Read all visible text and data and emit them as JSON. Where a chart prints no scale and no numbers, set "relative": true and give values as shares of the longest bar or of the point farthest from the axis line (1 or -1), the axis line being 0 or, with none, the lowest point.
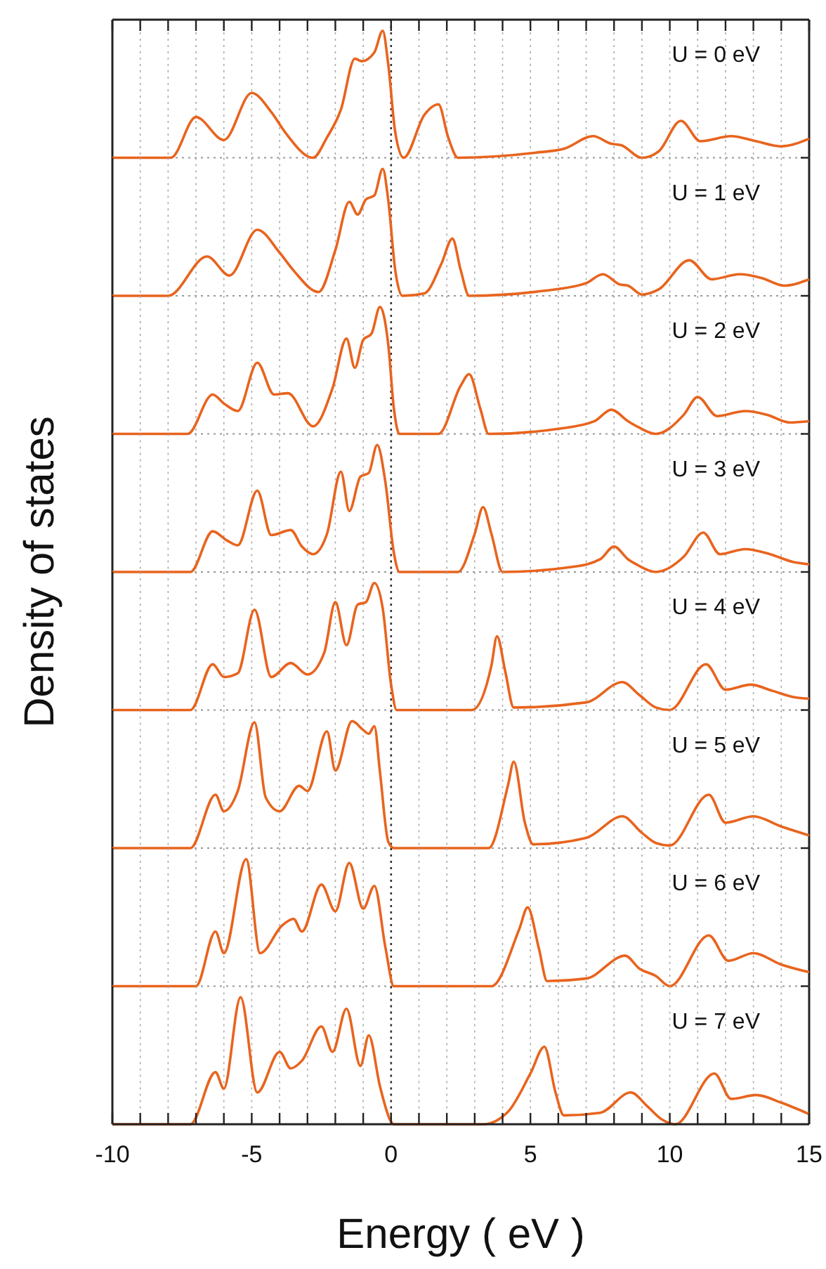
{
  "chart_data": [
    {
      "type": "line",
      "relative": true,
      "color": "#e8641e",
      "annotations": [
        "U = 0 eV"
      ],
      "xlim": [
        -10,
        15
      ],
      "grid": "x",
      "tick_labels": false,
      "ref_lines": [
        {
          "axis": "x",
          "value": 0,
          "line_style": "dotted",
          "color": "#333333"
        }
      ],
      "xticks": [
        -10,
        -9,
        -8,
        -7,
        -6,
        -5,
        -4,
        -3,
        -2,
        -1,
        0,
        1,
        2,
        3,
        4,
        5,
        6,
        7,
        8,
        9,
        10,
        11,
        12,
        13,
        14,
        15
      ],
      "x": [
        -10,
        -7.9,
        -7.0,
        -6.0,
        -5.0,
        -4.3,
        -3.8,
        -2.8,
        -2.3,
        -1.8,
        -1.3,
        -1.05,
        -0.6,
        -0.3,
        -0.1,
        0.15,
        0.45,
        1.2,
        1.7,
        2.05,
        2.4,
        5.2,
        6.2,
        7.25,
        7.9,
        8.25,
        9.0,
        9.6,
        10.4,
        11.1,
        12.2,
        13.1,
        14.0,
        15
      ],
      "values": [
        0,
        0,
        0.32,
        0.14,
        0.51,
        0.36,
        0.2,
        0,
        0.16,
        0.38,
        0.78,
        0.76,
        0.83,
        1.0,
        0.73,
        0.2,
        0,
        0.34,
        0.42,
        0.16,
        0,
        0.04,
        0.07,
        0.17,
        0.11,
        0.1,
        0,
        0.05,
        0.29,
        0.13,
        0.17,
        0.13,
        0.09,
        0.15
      ]
    },
    {
      "type": "line",
      "relative": true,
      "color": "#e8641e",
      "annotations": [
        "U = 1 eV"
      ],
      "xlim": [
        -10,
        15
      ],
      "grid": "x",
      "tick_labels": false,
      "ref_lines": [
        {
          "axis": "x",
          "value": 0,
          "line_style": "dotted",
          "color": "#333333"
        }
      ],
      "xticks": [
        -10,
        -9,
        -8,
        -7,
        -6,
        -5,
        -4,
        -3,
        -2,
        -1,
        0,
        1,
        2,
        3,
        4,
        5,
        6,
        7,
        8,
        9,
        10,
        11,
        12,
        13,
        14,
        15
      ],
      "x": [
        -10,
        -8.0,
        -6.6,
        -5.8,
        -4.8,
        -4.0,
        -3.5,
        -2.6,
        -2.0,
        -1.5,
        -1.2,
        -0.9,
        -0.6,
        -0.3,
        -0.1,
        0.15,
        0.4,
        1.2,
        1.8,
        2.2,
        2.5,
        2.8,
        5.5,
        7.0,
        7.6,
        8.2,
        8.5,
        9.0,
        9.6,
        10.7,
        11.5,
        12.5,
        13.3,
        14.1,
        15
      ],
      "values": [
        0,
        0,
        0.31,
        0.16,
        0.52,
        0.34,
        0.2,
        0.03,
        0.36,
        0.74,
        0.64,
        0.76,
        0.79,
        1.0,
        0.75,
        0.2,
        0,
        0.02,
        0.25,
        0.45,
        0.2,
        0,
        0.04,
        0.1,
        0.17,
        0.09,
        0.08,
        0.01,
        0.05,
        0.28,
        0.13,
        0.17,
        0.14,
        0.08,
        0.13
      ]
    },
    {
      "type": "line",
      "relative": true,
      "color": "#e8641e",
      "annotations": [
        "U = 2 eV"
      ],
      "xlim": [
        -10,
        15
      ],
      "grid": "x",
      "tick_labels": false,
      "ref_lines": [
        {
          "axis": "x",
          "value": 0,
          "line_style": "dotted",
          "color": "#333333"
        }
      ],
      "xticks": [
        -10,
        -9,
        -8,
        -7,
        -6,
        -5,
        -4,
        -3,
        -2,
        -1,
        0,
        1,
        2,
        3,
        4,
        5,
        6,
        7,
        8,
        9,
        10,
        11,
        12,
        13,
        14,
        15
      ],
      "x": [
        -10,
        -7.3,
        -6.4,
        -6.0,
        -5.5,
        -4.8,
        -4.2,
        -3.7,
        -2.8,
        -2.1,
        -1.6,
        -1.3,
        -1.0,
        -0.7,
        -0.4,
        -0.1,
        0.1,
        0.3,
        1.7,
        2.5,
        2.8,
        3.2,
        3.5,
        6.0,
        7.3,
        7.9,
        8.5,
        8.9,
        9.5,
        10.5,
        11.0,
        11.7,
        12.7,
        13.5,
        14.3,
        15
      ],
      "values": [
        0,
        0,
        0.31,
        0.24,
        0.18,
        0.56,
        0.31,
        0.32,
        0.06,
        0.36,
        0.75,
        0.52,
        0.74,
        0.79,
        1.0,
        0.7,
        0.2,
        0,
        0,
        0.38,
        0.47,
        0.2,
        0,
        0.04,
        0.1,
        0.19,
        0.1,
        0.05,
        0,
        0.15,
        0.29,
        0.14,
        0.18,
        0.15,
        0.09,
        0.1
      ]
    },
    {
      "type": "line",
      "relative": true,
      "color": "#e8641e",
      "annotations": [
        "U = 3 eV"
      ],
      "ylabel": "Density of states",
      "xlim": [
        -10,
        15
      ],
      "grid": "x",
      "tick_labels": false,
      "ref_lines": [
        {
          "axis": "x",
          "value": 0,
          "line_style": "dotted",
          "color": "#333333"
        }
      ],
      "xticks": [
        -10,
        -9,
        -8,
        -7,
        -6,
        -5,
        -4,
        -3,
        -2,
        -1,
        0,
        1,
        2,
        3,
        4,
        5,
        6,
        7,
        8,
        9,
        10,
        11,
        12,
        13,
        14,
        15
      ],
      "x": [
        -10,
        -7.2,
        -6.4,
        -5.9,
        -5.5,
        -4.8,
        -4.3,
        -3.6,
        -3.2,
        -2.8,
        -2.3,
        -1.8,
        -1.5,
        -1.1,
        -0.8,
        -0.5,
        -0.2,
        0.1,
        0.3,
        2.4,
        3.0,
        3.3,
        3.6,
        4.0,
        6.5,
        7.5,
        8.0,
        8.5,
        8.8,
        9.5,
        10.5,
        11.2,
        11.8,
        12.7,
        13.6,
        14.4,
        15
      ],
      "values": [
        0,
        0,
        0.32,
        0.25,
        0.21,
        0.64,
        0.29,
        0.33,
        0.2,
        0.14,
        0.3,
        0.79,
        0.48,
        0.75,
        0.78,
        1.0,
        0.7,
        0.15,
        0,
        0,
        0.3,
        0.51,
        0.3,
        0,
        0.04,
        0.1,
        0.2,
        0.1,
        0.06,
        0,
        0.12,
        0.31,
        0.14,
        0.18,
        0.14,
        0.08,
        0.06
      ]
    },
    {
      "type": "line",
      "relative": true,
      "color": "#e8641e",
      "annotations": [
        "U = 4 eV"
      ],
      "xlim": [
        -10,
        15
      ],
      "grid": "x",
      "tick_labels": false,
      "ref_lines": [
        {
          "axis": "x",
          "value": 0,
          "line_style": "dotted",
          "color": "#333333"
        }
      ],
      "xticks": [
        -10,
        -9,
        -8,
        -7,
        -6,
        -5,
        -4,
        -3,
        -2,
        -1,
        0,
        1,
        2,
        3,
        4,
        5,
        6,
        7,
        8,
        9,
        10,
        11,
        12,
        13,
        14,
        15
      ],
      "x": [
        -10,
        -7.2,
        -6.4,
        -6.0,
        -5.5,
        -4.9,
        -4.3,
        -3.6,
        -3.0,
        -2.4,
        -2.0,
        -1.6,
        -1.2,
        -0.9,
        -0.6,
        -0.3,
        0.0,
        0.2,
        2.9,
        3.6,
        3.8,
        4.1,
        4.4,
        7.0,
        8.3,
        8.9,
        9.5,
        10.0,
        11.3,
        12.0,
        12.9,
        13.7,
        14.5,
        15
      ],
      "values": [
        0,
        0,
        0.36,
        0.26,
        0.29,
        0.79,
        0.26,
        0.37,
        0.28,
        0.45,
        0.85,
        0.51,
        0.83,
        0.85,
        1.0,
        0.8,
        0.2,
        0,
        0,
        0.35,
        0.58,
        0.3,
        0.02,
        0.06,
        0.22,
        0.12,
        0.02,
        0,
        0.36,
        0.16,
        0.2,
        0.15,
        0.1,
        0.09
      ]
    },
    {
      "type": "line",
      "relative": true,
      "color": "#e8641e",
      "annotations": [
        "U = 5 eV"
      ],
      "xlim": [
        -10,
        15
      ],
      "grid": "x",
      "tick_labels": false,
      "ref_lines": [
        {
          "axis": "x",
          "value": 0,
          "line_style": "dotted",
          "color": "#333333"
        }
      ],
      "xticks": [
        -10,
        -9,
        -8,
        -7,
        -6,
        -5,
        -4,
        -3,
        -2,
        -1,
        0,
        1,
        2,
        3,
        4,
        5,
        6,
        7,
        8,
        9,
        10,
        11,
        12,
        13,
        14,
        15
      ],
      "x": [
        -10,
        -7.2,
        -6.3,
        -6.0,
        -5.5,
        -4.9,
        -4.5,
        -4.0,
        -3.3,
        -3.0,
        -2.3,
        -2.0,
        -1.4,
        -1.0,
        -0.8,
        -0.6,
        -0.4,
        -0.1,
        0.1,
        3.5,
        4.2,
        4.4,
        4.8,
        5.1,
        7.0,
        8.3,
        9.0,
        9.5,
        10.0,
        11.4,
        12.0,
        13.0,
        14.0,
        15
      ],
      "values": [
        0,
        0,
        0.42,
        0.29,
        0.45,
        0.99,
        0.4,
        0.29,
        0.49,
        0.45,
        0.92,
        0.61,
        1.0,
        0.93,
        0.9,
        0.96,
        0.6,
        0.05,
        0,
        0,
        0.5,
        0.68,
        0.2,
        0.03,
        0.08,
        0.25,
        0.12,
        0.04,
        0.02,
        0.42,
        0.2,
        0.25,
        0.17,
        0.1
      ]
    },
    {
      "type": "line",
      "relative": true,
      "color": "#e8641e",
      "annotations": [
        "U = 6 eV"
      ],
      "xlim": [
        -10,
        15
      ],
      "grid": "x",
      "tick_labels": false,
      "ref_lines": [
        {
          "axis": "x",
          "value": 0,
          "line_style": "dotted",
          "color": "#333333"
        }
      ],
      "xticks": [
        -10,
        -9,
        -8,
        -7,
        -6,
        -5,
        -4,
        -3,
        -2,
        -1,
        0,
        1,
        2,
        3,
        4,
        5,
        6,
        7,
        8,
        9,
        10,
        11,
        12,
        13,
        14,
        15
      ],
      "x": [
        -10,
        -7.0,
        -6.3,
        -6.0,
        -5.2,
        -4.7,
        -3.9,
        -3.5,
        -3.2,
        -2.5,
        -2.0,
        -1.5,
        -1.0,
        -0.6,
        -0.2,
        0.1,
        3.6,
        4.6,
        4.9,
        5.3,
        5.6,
        7.0,
        8.4,
        8.9,
        9.5,
        10.0,
        11.4,
        12.1,
        13.0,
        14.0,
        15
      ],
      "values": [
        0,
        0,
        0.43,
        0.26,
        1.0,
        0.26,
        0.48,
        0.53,
        0.43,
        0.8,
        0.59,
        0.97,
        0.61,
        0.79,
        0.3,
        0,
        0,
        0.45,
        0.62,
        0.3,
        0.04,
        0.06,
        0.24,
        0.14,
        0.08,
        0,
        0.4,
        0.2,
        0.26,
        0.17,
        0.11
      ]
    },
    {
      "type": "line",
      "relative": true,
      "color": "#e8641e",
      "annotations": [
        "U = 7 eV"
      ],
      "xlabel": "Energy ( eV )",
      "xlim": [
        -10,
        15
      ],
      "grid": "x",
      "tick_labels": "x",
      "ref_lines": [
        {
          "axis": "x",
          "value": 0,
          "line_style": "dotted",
          "color": "#333333"
        }
      ],
      "xticks": [
        -10,
        {
          "value": -9,
          "label": null
        },
        {
          "value": -8,
          "label": null
        },
        {
          "value": -7,
          "label": null
        },
        {
          "value": -6,
          "label": null
        },
        -5,
        {
          "value": -4,
          "label": null
        },
        {
          "value": -3,
          "label": null
        },
        {
          "value": -2,
          "label": null
        },
        {
          "value": -1,
          "label": null
        },
        0,
        {
          "value": 1,
          "label": null
        },
        {
          "value": 2,
          "label": null
        },
        {
          "value": 3,
          "label": null
        },
        {
          "value": 4,
          "label": null
        },
        5,
        {
          "value": 6,
          "label": null
        },
        {
          "value": 7,
          "label": null
        },
        {
          "value": 8,
          "label": null
        },
        {
          "value": 9,
          "label": null
        },
        10,
        {
          "value": 11,
          "label": null
        },
        {
          "value": 12,
          "label": null
        },
        {
          "value": 13,
          "label": null
        },
        {
          "value": 14,
          "label": null
        },
        15
      ],
      "x": [
        -10,
        -7.2,
        -6.3,
        -6.0,
        -5.4,
        -4.8,
        -4.0,
        -3.6,
        -3.2,
        -2.5,
        -2.1,
        -1.6,
        -1.1,
        -0.8,
        -0.4,
        0.0,
        0.1,
        3.3,
        4.2,
        5.0,
        5.5,
        5.9,
        6.2,
        7.5,
        8.6,
        9.2,
        9.7,
        10.2,
        11.6,
        12.2,
        13.1,
        14.0,
        15
      ],
      "values": [
        0,
        0,
        0.41,
        0.28,
        1.0,
        0.25,
        0.57,
        0.44,
        0.5,
        0.77,
        0.57,
        0.91,
        0.46,
        0.7,
        0.3,
        0.02,
        0,
        0,
        0.1,
        0.4,
        0.61,
        0.25,
        0.07,
        0.09,
        0.25,
        0.14,
        0.04,
        0,
        0.4,
        0.2,
        0.23,
        0.17,
        0.08
      ]
    }
  ]
}
